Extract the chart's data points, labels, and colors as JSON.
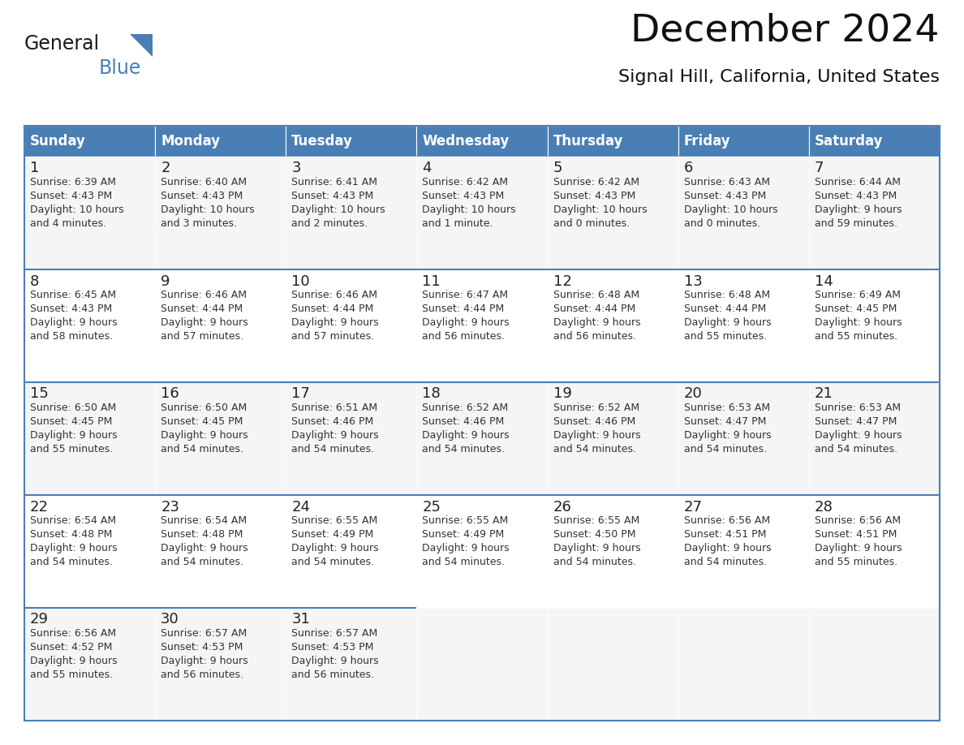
{
  "title": "December 2024",
  "subtitle": "Signal Hill, California, United States",
  "header_color": "#4a7fb5",
  "header_text_color": "#ffffff",
  "cell_bg_even": "#f5f5f5",
  "cell_bg_odd": "#ffffff",
  "border_color": "#4a7fb5",
  "text_color": "#222222",
  "small_text_color": "#333333",
  "day_headers": [
    "Sunday",
    "Monday",
    "Tuesday",
    "Wednesday",
    "Thursday",
    "Friday",
    "Saturday"
  ],
  "weeks": [
    [
      {
        "day": "1",
        "sunrise": "6:39 AM",
        "sunset": "4:43 PM",
        "daylight_h": "10 hours",
        "daylight_m": "and 4 minutes."
      },
      {
        "day": "2",
        "sunrise": "6:40 AM",
        "sunset": "4:43 PM",
        "daylight_h": "10 hours",
        "daylight_m": "and 3 minutes."
      },
      {
        "day": "3",
        "sunrise": "6:41 AM",
        "sunset": "4:43 PM",
        "daylight_h": "10 hours",
        "daylight_m": "and 2 minutes."
      },
      {
        "day": "4",
        "sunrise": "6:42 AM",
        "sunset": "4:43 PM",
        "daylight_h": "10 hours",
        "daylight_m": "and 1 minute."
      },
      {
        "day": "5",
        "sunrise": "6:42 AM",
        "sunset": "4:43 PM",
        "daylight_h": "10 hours",
        "daylight_m": "and 0 minutes."
      },
      {
        "day": "6",
        "sunrise": "6:43 AM",
        "sunset": "4:43 PM",
        "daylight_h": "10 hours",
        "daylight_m": "and 0 minutes."
      },
      {
        "day": "7",
        "sunrise": "6:44 AM",
        "sunset": "4:43 PM",
        "daylight_h": "9 hours",
        "daylight_m": "and 59 minutes."
      }
    ],
    [
      {
        "day": "8",
        "sunrise": "6:45 AM",
        "sunset": "4:43 PM",
        "daylight_h": "9 hours",
        "daylight_m": "and 58 minutes."
      },
      {
        "day": "9",
        "sunrise": "6:46 AM",
        "sunset": "4:44 PM",
        "daylight_h": "9 hours",
        "daylight_m": "and 57 minutes."
      },
      {
        "day": "10",
        "sunrise": "6:46 AM",
        "sunset": "4:44 PM",
        "daylight_h": "9 hours",
        "daylight_m": "and 57 minutes."
      },
      {
        "day": "11",
        "sunrise": "6:47 AM",
        "sunset": "4:44 PM",
        "daylight_h": "9 hours",
        "daylight_m": "and 56 minutes."
      },
      {
        "day": "12",
        "sunrise": "6:48 AM",
        "sunset": "4:44 PM",
        "daylight_h": "9 hours",
        "daylight_m": "and 56 minutes."
      },
      {
        "day": "13",
        "sunrise": "6:48 AM",
        "sunset": "4:44 PM",
        "daylight_h": "9 hours",
        "daylight_m": "and 55 minutes."
      },
      {
        "day": "14",
        "sunrise": "6:49 AM",
        "sunset": "4:45 PM",
        "daylight_h": "9 hours",
        "daylight_m": "and 55 minutes."
      }
    ],
    [
      {
        "day": "15",
        "sunrise": "6:50 AM",
        "sunset": "4:45 PM",
        "daylight_h": "9 hours",
        "daylight_m": "and 55 minutes."
      },
      {
        "day": "16",
        "sunrise": "6:50 AM",
        "sunset": "4:45 PM",
        "daylight_h": "9 hours",
        "daylight_m": "and 54 minutes."
      },
      {
        "day": "17",
        "sunrise": "6:51 AM",
        "sunset": "4:46 PM",
        "daylight_h": "9 hours",
        "daylight_m": "and 54 minutes."
      },
      {
        "day": "18",
        "sunrise": "6:52 AM",
        "sunset": "4:46 PM",
        "daylight_h": "9 hours",
        "daylight_m": "and 54 minutes."
      },
      {
        "day": "19",
        "sunrise": "6:52 AM",
        "sunset": "4:46 PM",
        "daylight_h": "9 hours",
        "daylight_m": "and 54 minutes."
      },
      {
        "day": "20",
        "sunrise": "6:53 AM",
        "sunset": "4:47 PM",
        "daylight_h": "9 hours",
        "daylight_m": "and 54 minutes."
      },
      {
        "day": "21",
        "sunrise": "6:53 AM",
        "sunset": "4:47 PM",
        "daylight_h": "9 hours",
        "daylight_m": "and 54 minutes."
      }
    ],
    [
      {
        "day": "22",
        "sunrise": "6:54 AM",
        "sunset": "4:48 PM",
        "daylight_h": "9 hours",
        "daylight_m": "and 54 minutes."
      },
      {
        "day": "23",
        "sunrise": "6:54 AM",
        "sunset": "4:48 PM",
        "daylight_h": "9 hours",
        "daylight_m": "and 54 minutes."
      },
      {
        "day": "24",
        "sunrise": "6:55 AM",
        "sunset": "4:49 PM",
        "daylight_h": "9 hours",
        "daylight_m": "and 54 minutes."
      },
      {
        "day": "25",
        "sunrise": "6:55 AM",
        "sunset": "4:49 PM",
        "daylight_h": "9 hours",
        "daylight_m": "and 54 minutes."
      },
      {
        "day": "26",
        "sunrise": "6:55 AM",
        "sunset": "4:50 PM",
        "daylight_h": "9 hours",
        "daylight_m": "and 54 minutes."
      },
      {
        "day": "27",
        "sunrise": "6:56 AM",
        "sunset": "4:51 PM",
        "daylight_h": "9 hours",
        "daylight_m": "and 54 minutes."
      },
      {
        "day": "28",
        "sunrise": "6:56 AM",
        "sunset": "4:51 PM",
        "daylight_h": "9 hours",
        "daylight_m": "and 55 minutes."
      }
    ],
    [
      {
        "day": "29",
        "sunrise": "6:56 AM",
        "sunset": "4:52 PM",
        "daylight_h": "9 hours",
        "daylight_m": "and 55 minutes."
      },
      {
        "day": "30",
        "sunrise": "6:57 AM",
        "sunset": "4:53 PM",
        "daylight_h": "9 hours",
        "daylight_m": "and 56 minutes."
      },
      {
        "day": "31",
        "sunrise": "6:57 AM",
        "sunset": "4:53 PM",
        "daylight_h": "9 hours",
        "daylight_m": "and 56 minutes."
      },
      null,
      null,
      null,
      null
    ]
  ]
}
